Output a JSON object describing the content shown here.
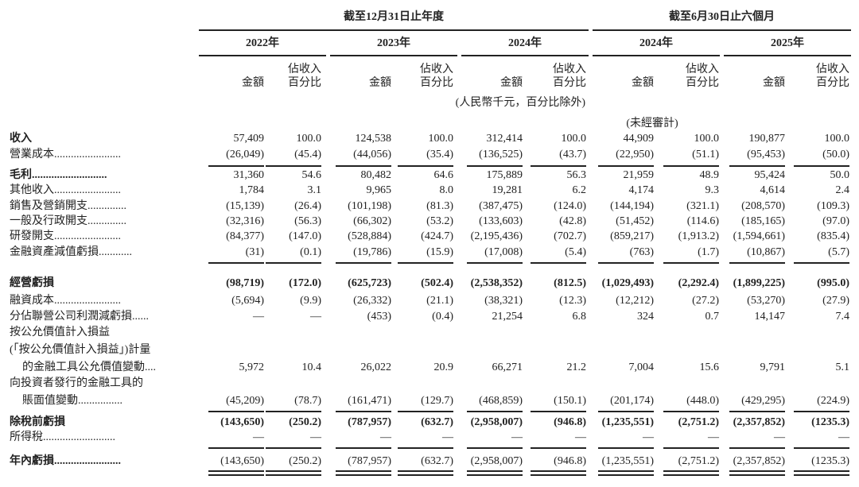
{
  "header": {
    "groups": [
      "截至12月31日止年度",
      "截至6月30日止六個月"
    ],
    "years": [
      "2022年",
      "2023年",
      "2024年",
      "2024年",
      "2025年"
    ],
    "amount": "金額",
    "percent": [
      "佔收入",
      "百分比"
    ],
    "unit_note": "(人民幣千元，百分比除外)",
    "unaudited_note": "(未經審計)"
  },
  "table": {
    "rows": [
      {
        "label": [
          "收入"
        ],
        "values": [
          "57,409",
          "100.0",
          "124,538",
          "100.0",
          "312,414",
          "100.0",
          "44,909",
          "100.0",
          "190,877",
          "100.0"
        ]
      },
      {
        "label": [
          "營業成本........................"
        ],
        "values": [
          "(26,049)",
          "(45.4)",
          "(44,056)",
          "(35.4)",
          "(136,525)",
          "(43.7)",
          "(22,950)",
          "(51.1)",
          "(95,453)",
          "(50.0)"
        ]
      },
      {
        "label": [
          "毛利..........................."
        ],
        "values": [
          "31,360",
          "54.6",
          "80,482",
          "64.6",
          "175,889",
          "56.3",
          "21,959",
          "48.9",
          "95,424",
          "50.0"
        ]
      },
      {
        "label": [
          "其他收入........................"
        ],
        "values": [
          "1,784",
          "3.1",
          "9,965",
          "8.0",
          "19,281",
          "6.2",
          "4,174",
          "9.3",
          "4,614",
          "2.4"
        ]
      },
      {
        "label": [
          "銷售及營銷開支.............."
        ],
        "values": [
          "(15,139)",
          "(26.4)",
          "(101,198)",
          "(81.3)",
          "(387,475)",
          "(124.0)",
          "(144,194)",
          "(321.1)",
          "(208,570)",
          "(109.3)"
        ]
      },
      {
        "label": [
          "一般及行政開支.............."
        ],
        "values": [
          "(32,316)",
          "(56.3)",
          "(66,302)",
          "(53.2)",
          "(133,603)",
          "(42.8)",
          "(51,452)",
          "(114.6)",
          "(185,165)",
          "(97.0)"
        ]
      },
      {
        "label": [
          "研發開支........................"
        ],
        "values": [
          "(84,377)",
          "(147.0)",
          "(528,884)",
          "(424.7)",
          "(2,195,436)",
          "(702.7)",
          "(859,217)",
          "(1,913.2)",
          "(1,594,661)",
          "(835.4)"
        ]
      },
      {
        "label": [
          "金融資產減值虧損............"
        ],
        "values": [
          "(31)",
          "(0.1)",
          "(19,786)",
          "(15.9)",
          "(17,008)",
          "(5.4)",
          "(763)",
          "(1.7)",
          "(10,867)",
          "(5.7)"
        ]
      },
      {
        "label": [
          "經營虧損"
        ],
        "values": [
          "(98,719)",
          "(172.0)",
          "(625,723)",
          "(502.4)",
          "(2,538,352)",
          "(812.5)",
          "(1,029,493)",
          "(2,292.4)",
          "(1,899,225)",
          "(995.0)"
        ]
      },
      {
        "label": [
          "融資成本........................"
        ],
        "values": [
          "(5,694)",
          "(9.9)",
          "(26,332)",
          "(21.1)",
          "(38,321)",
          "(12.3)",
          "(12,212)",
          "(27.2)",
          "(53,270)",
          "(27.9)"
        ]
      },
      {
        "label": [
          "分佔聯營公司利潤減虧損......"
        ],
        "values": [
          "—",
          "—",
          "(453)",
          "(0.4)",
          "21,254",
          "6.8",
          "324",
          "0.7",
          "14,147",
          "7.4"
        ]
      },
      {
        "label": [
          "按公允價值計入損益",
          "(「按公允價值計入損益」)計量",
          "的金融工具公允價值變動...."
        ],
        "values": [
          "5,972",
          "10.4",
          "26,022",
          "20.9",
          "66,271",
          "21.2",
          "7,004",
          "15.6",
          "9,791",
          "5.1"
        ]
      },
      {
        "label": [
          "向投資者發行的金融工具的",
          "賬面值變動................"
        ],
        "values": [
          "(45,209)",
          "(78.7)",
          "(161,471)",
          "(129.7)",
          "(468,859)",
          "(150.1)",
          "(201,174)",
          "(448.0)",
          "(429,295)",
          "(224.9)"
        ]
      },
      {
        "label": [
          "除稅前虧損"
        ],
        "values": [
          "(143,650)",
          "(250.2)",
          "(787,957)",
          "(632.7)",
          "(2,958,007)",
          "(946.8)",
          "(1,235,551)",
          "(2,751.2)",
          "(2,357,852)",
          "(1235.3)"
        ]
      },
      {
        "label": [
          "所得稅.........................."
        ],
        "values": [
          "—",
          "—",
          "—",
          "—",
          "—",
          "—",
          "—",
          "—",
          "—",
          "—"
        ]
      },
      {
        "label": [
          "年內虧損........................"
        ],
        "values": [
          "(143,650)",
          "(250.2)",
          "(787,957)",
          "(632.7)",
          "(2,958,007)",
          "(946.8)",
          "(1,235,551)",
          "(2,751.2)",
          "(2,357,852)",
          "(1235.3)"
        ]
      }
    ]
  }
}
